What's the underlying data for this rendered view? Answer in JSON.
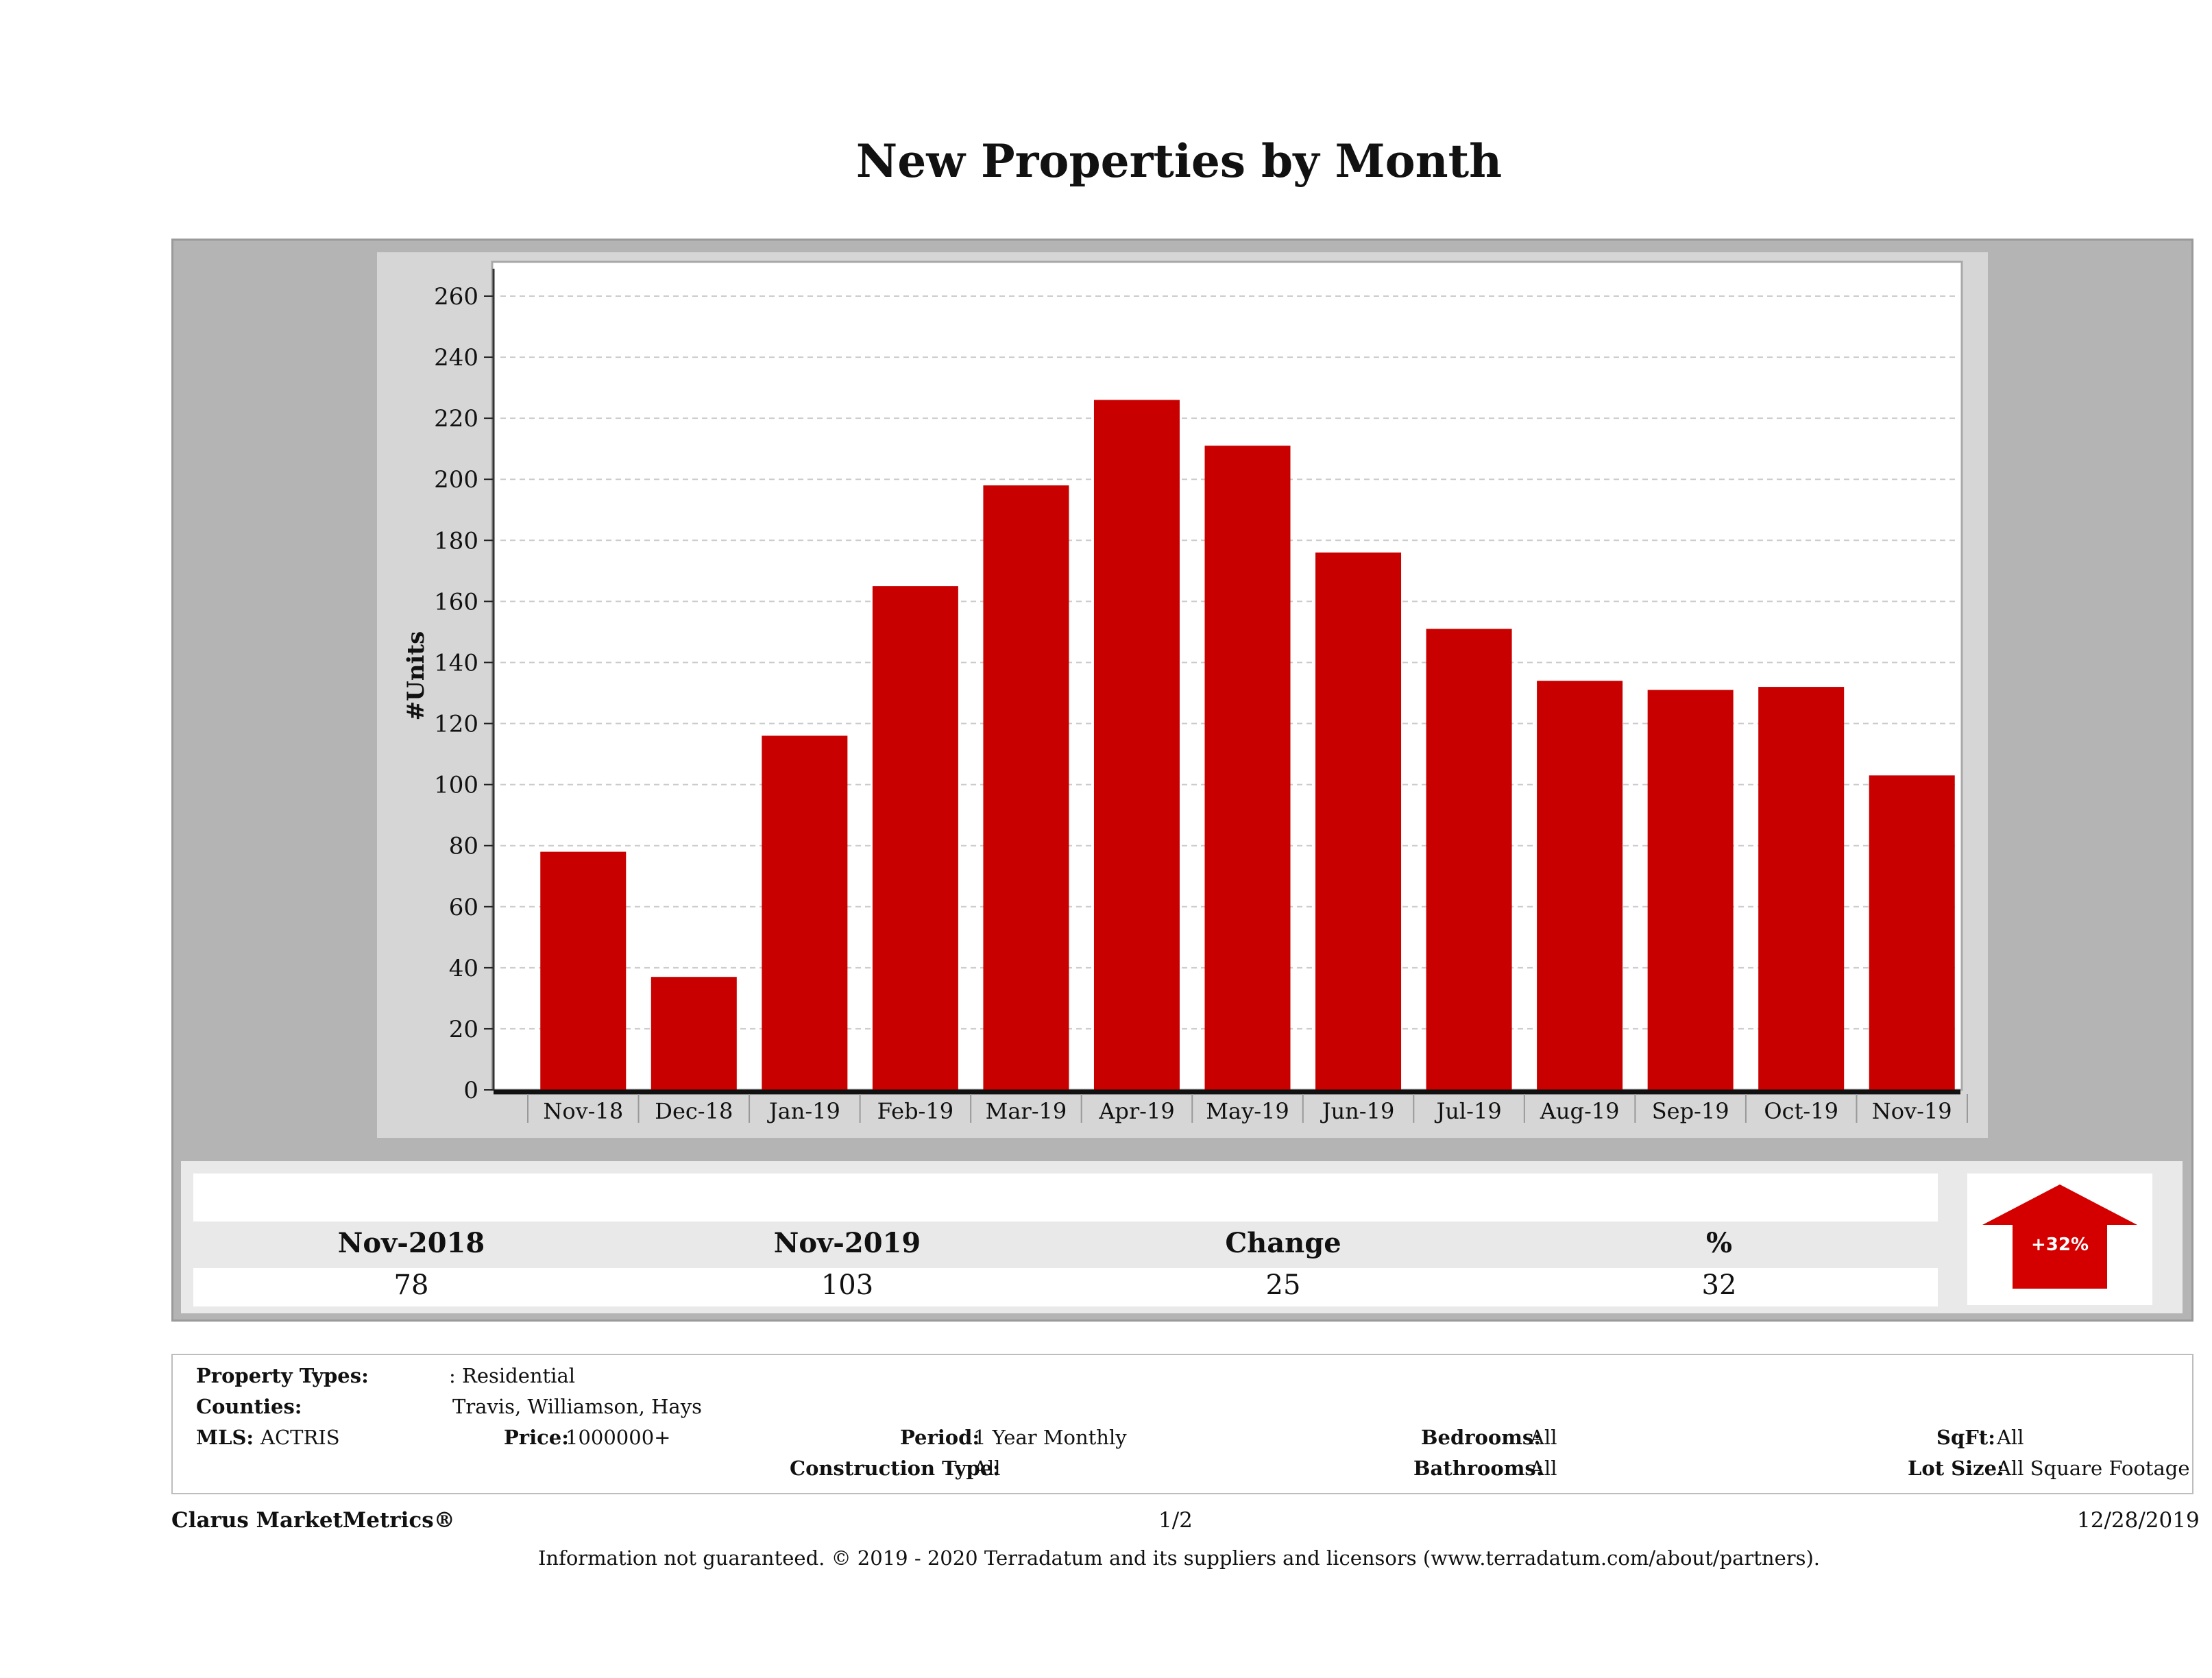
{
  "page": {
    "title": "New Properties by Month"
  },
  "chart_data": {
    "type": "bar",
    "title": "",
    "xlabel": "",
    "ylabel": "#Units",
    "ylim": [
      0,
      260
    ],
    "yticks": [
      0,
      20,
      40,
      60,
      80,
      100,
      120,
      140,
      160,
      180,
      200,
      220,
      240,
      260
    ],
    "grid": true,
    "categories": [
      "Nov-18",
      "Dec-18",
      "Jan-19",
      "Feb-19",
      "Mar-19",
      "Apr-19",
      "May-19",
      "Jun-19",
      "Jul-19",
      "Aug-19",
      "Sep-19",
      "Oct-19",
      "Nov-19"
    ],
    "values": [
      78,
      37,
      116,
      165,
      198,
      226,
      211,
      176,
      151,
      134,
      131,
      132,
      103
    ],
    "bar_color": "#c80000"
  },
  "summary": {
    "headers": [
      "Nov-2018",
      "Nov-2019",
      "Change",
      "%"
    ],
    "values": [
      "78",
      "103",
      "25",
      "32"
    ],
    "badge": "+32%",
    "badge_color": "#d40000",
    "badge_icon": "arrow-up-icon"
  },
  "info": {
    "property_types_label": "Property Types:",
    "property_types_value": ": Residential",
    "counties_label": "Counties:",
    "counties_value": "Travis, Williamson, Hays",
    "mls_label": "MLS:",
    "mls_value": "ACTRIS",
    "price_label": "Price:",
    "price_value": "1000000+",
    "period_label": "Period:",
    "period_value": "1 Year Monthly",
    "construction_label": "Construction Type:",
    "construction_value": "All",
    "bedrooms_label": "Bedrooms:",
    "bedrooms_value": "All",
    "bathrooms_label": "Bathrooms:",
    "bathrooms_value": "All",
    "sqft_label": "SqFt:",
    "sqft_value": "All",
    "lotsize_label": "Lot Size:",
    "lotsize_value": "All Square Footage"
  },
  "footer": {
    "brand": "Clarus MarketMetrics®",
    "page": "1/2",
    "date": "12/28/2019",
    "disclaimer": "Information not guaranteed. © 2019 - 2020 Terradatum and its suppliers and licensors (www.terradatum.com/about/partners)."
  }
}
